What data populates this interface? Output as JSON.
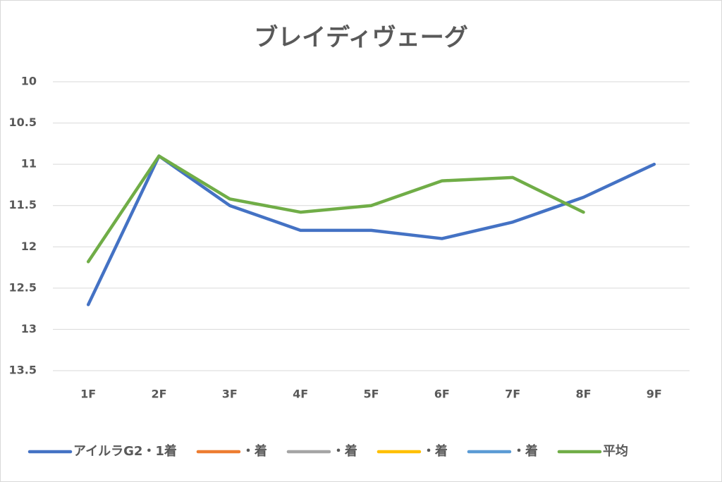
{
  "chart_data": {
    "type": "line",
    "title": "ブレイディヴェーグ",
    "categories": [
      "1F",
      "2F",
      "3F",
      "4F",
      "5F",
      "6F",
      "7F",
      "8F",
      "9F"
    ],
    "series": [
      {
        "name": "アイルラG2・1着",
        "color": "#4472c4",
        "values": [
          12.7,
          10.9,
          11.5,
          11.8,
          11.8,
          11.9,
          11.7,
          11.4,
          11.0
        ]
      },
      {
        "name": "・着",
        "color": "#ed7d31",
        "values": [
          null,
          null,
          null,
          null,
          null,
          null,
          null,
          null,
          null
        ]
      },
      {
        "name": "・着",
        "color": "#a5a5a5",
        "values": [
          null,
          null,
          null,
          null,
          null,
          null,
          null,
          null,
          null
        ]
      },
      {
        "name": "・着",
        "color": "#ffc000",
        "values": [
          null,
          null,
          null,
          null,
          null,
          null,
          null,
          null,
          null
        ]
      },
      {
        "name": "・着",
        "color": "#5b9bd5",
        "values": [
          null,
          null,
          null,
          null,
          null,
          null,
          null,
          null,
          null
        ]
      },
      {
        "name": "平均",
        "color": "#70ad47",
        "values": [
          12.18,
          10.9,
          11.42,
          11.58,
          11.5,
          11.2,
          11.16,
          11.58,
          null
        ]
      }
    ],
    "ylim": [
      10,
      13.5
    ],
    "yticks": [
      10,
      10.5,
      11,
      11.5,
      12,
      12.5,
      13,
      13.5
    ],
    "y_inverted": true,
    "grid": true,
    "legend": "bottom"
  }
}
